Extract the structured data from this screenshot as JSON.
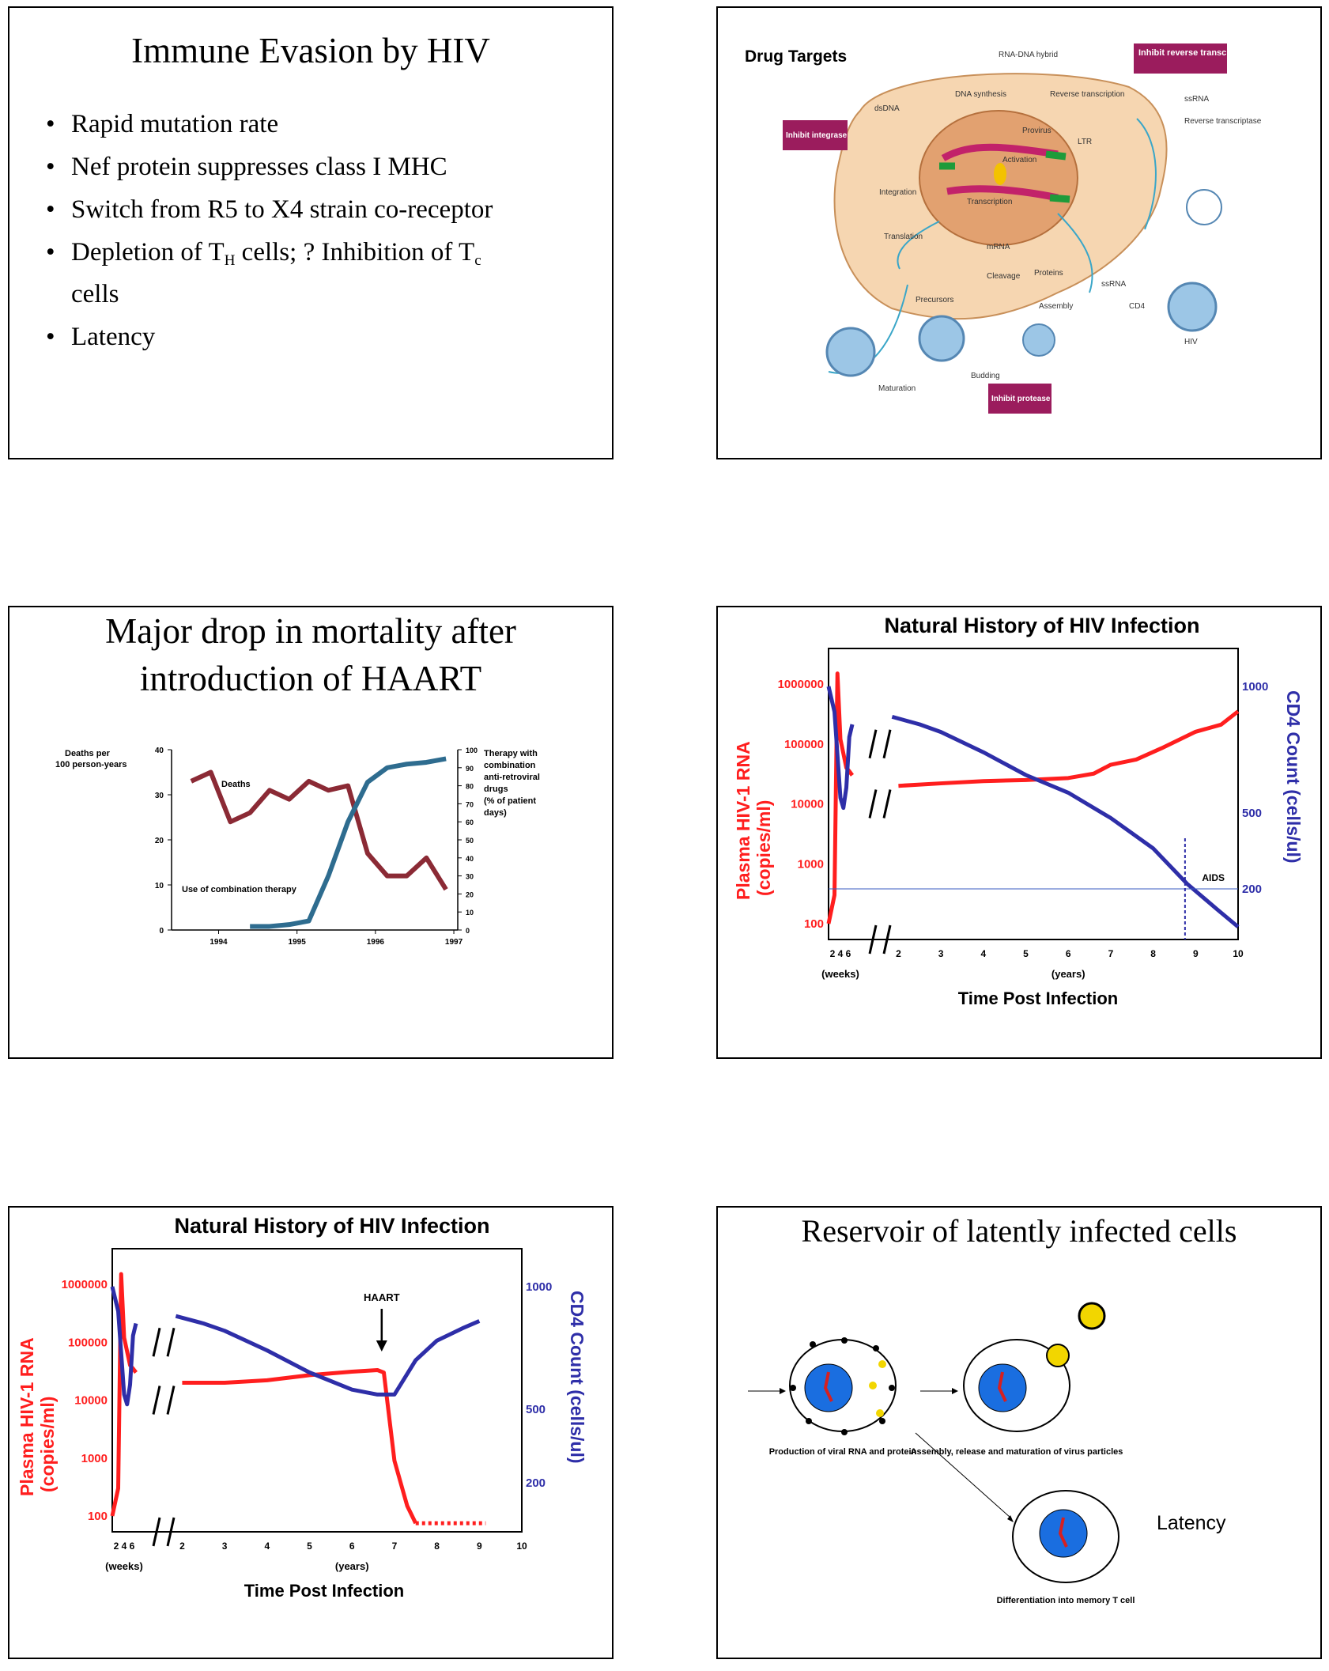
{
  "slide1": {
    "title": "Immune Evasion by HIV",
    "bullets": [
      "Rapid mutation rate",
      "Nef protein suppresses class I MHC",
      "Switch from R5 to X4 strain co-receptor",
      "Depletion of T",
      "H",
      " cells; ? Inhibition of T",
      "c",
      "cells",
      "Latency"
    ]
  },
  "slide2": {
    "title": "Drug Targets",
    "badges": [
      "Inhibit reverse transcription",
      "Inhibit integrase",
      "Inhibit protease"
    ],
    "labels": [
      "RNA-DNA hybrid",
      "DNA synthesis",
      "Reverse transcription",
      "dsDNA",
      "ssRNA",
      "Reverse transcriptase",
      "Provirus",
      "LTR",
      "Activation",
      "Integration",
      "Transcription",
      "Translation",
      "mRNA",
      "Cleavage",
      "Proteins",
      "ssRNA",
      "CD4",
      "Precursors",
      "Assembly",
      "Budding",
      "Maturation",
      "HIV"
    ]
  },
  "slide3": {
    "title_line1": "Major drop in mortality after",
    "title_line2": "introduction of HAART",
    "chart_data": {
      "type": "line",
      "left_axis_label": "Deaths per 100 person-years",
      "right_axis_label": "Therapy with combination anti-retroviral drugs (% of patient days)",
      "left_ticks": [
        "40",
        "30",
        "20",
        "10",
        "0"
      ],
      "right_ticks": [
        "100",
        "90",
        "80",
        "70",
        "60",
        "50",
        "40",
        "30",
        "20",
        "10",
        "0"
      ],
      "x_ticks": [
        "1994",
        "1995",
        "1996",
        "1997"
      ],
      "series": [
        {
          "name": "Deaths",
          "color": "#8b2a35",
          "x": [
            1994.0,
            1994.25,
            1994.5,
            1994.75,
            1995.0,
            1995.25,
            1995.5,
            1995.75,
            1996.0,
            1996.25,
            1996.5,
            1996.75,
            1997.0,
            1997.25
          ],
          "values": [
            33,
            35,
            24,
            26,
            31,
            29,
            33,
            31,
            32,
            17,
            12,
            12,
            16,
            9
          ]
        },
        {
          "name": "Use of combination therapy",
          "color": "#2e6c8f",
          "x": [
            1994.75,
            1995.0,
            1995.25,
            1995.5,
            1995.75,
            1996.0,
            1996.25,
            1996.5,
            1996.75,
            1997.0,
            1997.25
          ],
          "values": [
            2,
            2,
            3,
            5,
            30,
            60,
            82,
            90,
            92,
            93,
            95
          ]
        }
      ]
    }
  },
  "slide4": {
    "title": "Natural History of HIV Infection",
    "chart_data": {
      "type": "line",
      "title": "Natural History of HIV Infection",
      "left_ylabel_line1": "Plasma HIV-1 RNA",
      "left_ylabel_line2": "(copies/ml)",
      "right_ylabel": "CD4 Count (cells/ul)",
      "xlabel": "Time Post Infection",
      "left_ticks": [
        "1000000",
        "100000",
        "10000",
        "1000",
        "100"
      ],
      "right_ticks": [
        "1000",
        "500",
        "200"
      ],
      "x_ticks_weeks": "2 4 6",
      "x_ticks_years": [
        "2",
        "3",
        "4",
        "5",
        "6",
        "7",
        "8",
        "9",
        "10"
      ],
      "weeks_label": "(weeks)",
      "years_label": "(years)",
      "annotation": "AIDS",
      "series": [
        {
          "name": "Plasma HIV-1 RNA",
          "color": "#ff1e1e"
        },
        {
          "name": "CD4 Count",
          "color": "#2e2ea8"
        }
      ]
    }
  },
  "slide5": {
    "title": "Natural History of HIV Infection",
    "chart_data": {
      "type": "line",
      "title": "Natural History of HIV Infection",
      "left_ylabel_line1": "Plasma HIV-1 RNA",
      "left_ylabel_line2": "(copies/ml)",
      "right_ylabel": "CD4 Count (cells/ul)",
      "xlabel": "Time Post Infection",
      "left_ticks": [
        "1000000",
        "100000",
        "10000",
        "1000",
        "100"
      ],
      "right_ticks": [
        "1000",
        "500",
        "200"
      ],
      "x_ticks_weeks": "2 4 6",
      "x_ticks_years": [
        "2",
        "3",
        "4",
        "5",
        "6",
        "7",
        "8",
        "9",
        "10"
      ],
      "weeks_label": "(weeks)",
      "years_label": "(years)",
      "annotation": "HAART",
      "series": [
        {
          "name": "Plasma HIV-1 RNA",
          "color": "#ff1e1e"
        },
        {
          "name": "CD4 Count",
          "color": "#2e2ea8"
        }
      ]
    }
  },
  "slide6": {
    "title": "Reservoir of latently infected cells",
    "captions": [
      "Production of viral RNA and protein",
      "Assembly, release and maturation of virus particles",
      "Differentiation into memory T cell"
    ],
    "latency_label": "Latency"
  }
}
